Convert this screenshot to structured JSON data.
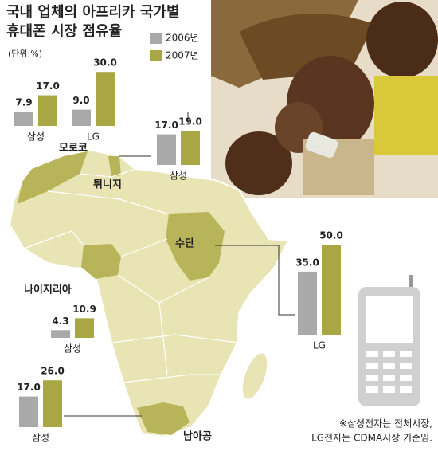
{
  "chart_data": {
    "type": "bar",
    "title": [
      "국내 업체의 아프리카 국가별",
      "휴대폰 시장 점유율"
    ],
    "unit": "(단위:%)",
    "legend": [
      {
        "name": "2006년",
        "color": "#a9a9a9"
      },
      {
        "name": "2007년",
        "color": "#a8a744"
      }
    ],
    "panels": [
      {
        "country": "모로코",
        "categories": [
          "삼성",
          "LG"
        ],
        "series": [
          {
            "values": [
              7.9,
              9.0
            ],
            "value_labels": [
              "7.9",
              "9.0"
            ]
          },
          {
            "values": [
              17.0,
              30.0
            ],
            "value_labels": [
              "17.0",
              "30.0"
            ]
          }
        ]
      },
      {
        "country": "튀니지",
        "categories": [
          "삼성"
        ],
        "series": [
          {
            "values": [
              17.0
            ],
            "value_labels": [
              "17.0"
            ]
          },
          {
            "values": [
              19.0
            ],
            "value_labels": [
              "19.0"
            ]
          }
        ]
      },
      {
        "country": "나이지리아",
        "categories": [
          "삼성"
        ],
        "series": [
          {
            "values": [
              4.3
            ],
            "value_labels": [
              "4.3"
            ]
          },
          {
            "values": [
              10.9
            ],
            "value_labels": [
              "10.9"
            ]
          }
        ]
      },
      {
        "country": "남아공",
        "categories": [
          "삼성"
        ],
        "series": [
          {
            "values": [
              17.0
            ],
            "value_labels": [
              "17.0"
            ]
          },
          {
            "values": [
              26.0
            ],
            "value_labels": [
              "26.0"
            ]
          }
        ]
      },
      {
        "country": "수단",
        "categories": [
          "LG"
        ],
        "series": [
          {
            "values": [
              35.0
            ],
            "value_labels": [
              "35.0"
            ]
          },
          {
            "values": [
              50.0
            ],
            "value_labels": [
              "50.0"
            ]
          }
        ]
      }
    ],
    "note": [
      "※삼성전자는 전체시장,",
      "LG전자는 CDMA시장 기준임."
    ]
  }
}
